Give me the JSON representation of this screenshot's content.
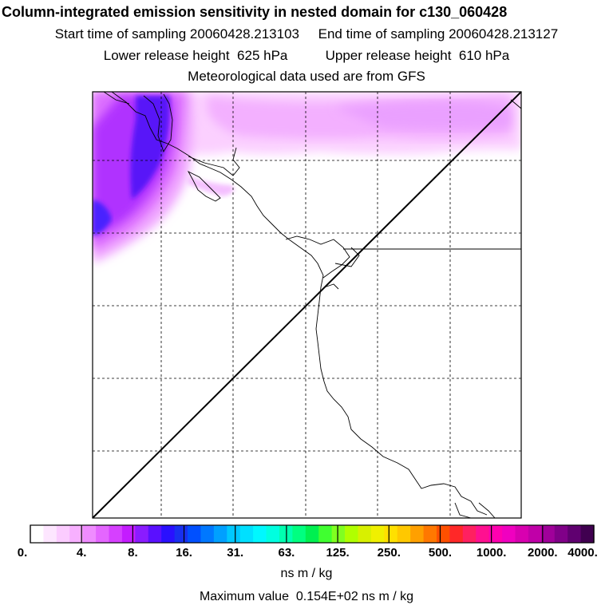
{
  "header": {
    "title": "Column-integrated emission sensitivity in nested domain for c130_060428",
    "line1": "Start time of sampling 20060428.213103     End time of sampling 20060428.213127",
    "line2": "Lower release height  625 hPa          Upper release height  610 hPa",
    "line3": "Meteorological data used are from GFS"
  },
  "colorbar": {
    "tick_labels": [
      "0.",
      "4.",
      "8.",
      "16.",
      "31.",
      "63.",
      "125.",
      "250.",
      "500.",
      "1000.",
      "2000.",
      "4000."
    ],
    "colors": [
      "#ffffff",
      "#fde6ff",
      "#fbccff",
      "#f7b0ff",
      "#ef8cff",
      "#e466ff",
      "#d640ff",
      "#c41cff",
      "#8a1cff",
      "#5a10ff",
      "#2a10ff",
      "#1830f0",
      "#0050ff",
      "#0078ff",
      "#00a0ff",
      "#00c8ff",
      "#00e0ff",
      "#00f8ff",
      "#00ffe0",
      "#00ffb0",
      "#00ff80",
      "#00f050",
      "#40ff30",
      "#80ff20",
      "#b0ff00",
      "#d8f000",
      "#f0f000",
      "#ffe000",
      "#ffc800",
      "#ffa000",
      "#ff7800",
      "#ff5000",
      "#ff2828",
      "#ff2060",
      "#ff1090",
      "#ff00b0",
      "#f000c0",
      "#d800b0",
      "#c000a8",
      "#a0009a",
      "#800088",
      "#600070",
      "#400050"
    ],
    "units": "ns m / kg"
  },
  "footer": {
    "max_value": "Maximum value  0.154E+02 ns m / kg"
  }
}
